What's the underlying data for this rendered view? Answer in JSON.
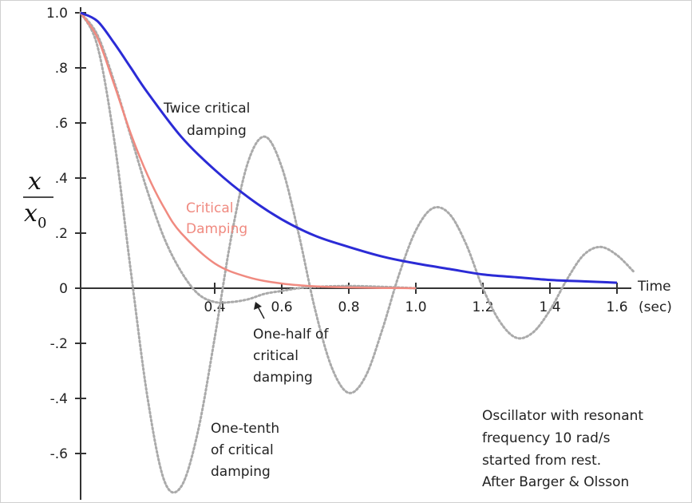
{
  "chart_data": {
    "type": "line",
    "title": "",
    "ylabel": {
      "numerator": "x",
      "denominator": "x",
      "subscript": "0"
    },
    "xlabel": {
      "line1": "Time",
      "line2": "(sec)"
    },
    "xlim": [
      0,
      1.6
    ],
    "ylim": [
      -0.7,
      1.0
    ],
    "x_ticks": [
      0.4,
      0.6,
      0.8,
      1.0,
      1.2,
      1.4,
      1.6
    ],
    "x_tick_labels": [
      "0.4",
      "0.6",
      "0.8",
      "1.0",
      "1.2",
      "1.4",
      "1.6"
    ],
    "y_ticks": [
      1.0,
      0.8,
      0.6,
      0.4,
      0.2,
      0,
      -0.2,
      -0.4,
      -0.6
    ],
    "y_tick_labels": [
      "1.0",
      ".8",
      ".6",
      ".4",
      ".2",
      "0",
      "-.2",
      "-.4",
      "-.6"
    ],
    "grid": false,
    "series": [
      {
        "name": "Twice critical damping",
        "color": "#2b2bd6",
        "style": "solid",
        "x": [
          0,
          0.05,
          0.1,
          0.15,
          0.2,
          0.3,
          0.4,
          0.5,
          0.6,
          0.7,
          0.8,
          0.9,
          1.0,
          1.1,
          1.2,
          1.3,
          1.4,
          1.5,
          1.6
        ],
        "y": [
          1.0,
          0.97,
          0.89,
          0.8,
          0.71,
          0.55,
          0.43,
          0.33,
          0.25,
          0.19,
          0.15,
          0.115,
          0.09,
          0.07,
          0.05,
          0.04,
          0.03,
          0.025,
          0.02
        ]
      },
      {
        "name": "Critical Damping",
        "color": "#f08a80",
        "style": "solid",
        "x": [
          0,
          0.05,
          0.1,
          0.15,
          0.2,
          0.25,
          0.3,
          0.4,
          0.5,
          0.6,
          0.7,
          0.8,
          0.9,
          1.0
        ],
        "y": [
          1.0,
          0.91,
          0.74,
          0.56,
          0.41,
          0.29,
          0.2,
          0.09,
          0.04,
          0.017,
          0.007,
          0.003,
          0.001,
          0.0
        ]
      },
      {
        "name": "One-half of critical damping",
        "color": "#aaaaaa",
        "style": "dotted",
        "x": [
          0,
          0.05,
          0.1,
          0.15,
          0.2,
          0.25,
          0.3,
          0.35,
          0.4,
          0.45,
          0.5,
          0.55,
          0.6,
          0.65,
          0.7,
          0.8,
          0.9,
          1.0
        ],
        "y": [
          1.0,
          0.92,
          0.75,
          0.55,
          0.35,
          0.18,
          0.06,
          -0.02,
          -0.05,
          -0.05,
          -0.04,
          -0.02,
          -0.01,
          0.0,
          0.005,
          0.008,
          0.005,
          0.0
        ]
      },
      {
        "name": "One-tenth of critical damping",
        "color": "#aaaaaa",
        "style": "dotted",
        "x": [
          0,
          0.05,
          0.1,
          0.15,
          0.2,
          0.25,
          0.3,
          0.35,
          0.4,
          0.45,
          0.5,
          0.55,
          0.6,
          0.65,
          0.7,
          0.75,
          0.8,
          0.85,
          0.9,
          0.95,
          1.0,
          1.05,
          1.1,
          1.15,
          1.2,
          1.25,
          1.3,
          1.35,
          1.4,
          1.45,
          1.5,
          1.55,
          1.6,
          1.65
        ],
        "y": [
          1.0,
          0.88,
          0.54,
          0.06,
          -0.4,
          -0.7,
          -0.72,
          -0.52,
          -0.18,
          0.19,
          0.46,
          0.55,
          0.44,
          0.2,
          -0.08,
          -0.29,
          -0.38,
          -0.32,
          -0.15,
          0.05,
          0.21,
          0.29,
          0.27,
          0.16,
          0.0,
          -0.12,
          -0.18,
          -0.16,
          -0.08,
          0.03,
          0.12,
          0.15,
          0.12,
          0.06
        ]
      }
    ],
    "annotations": {
      "twice": [
        "Twice critical",
        "damping"
      ],
      "critical": [
        "Critical",
        "Damping"
      ],
      "half": [
        "One-half of",
        "critical",
        "damping"
      ],
      "tenth": [
        "One-tenth",
        "of critical",
        "damping"
      ],
      "note": [
        "Oscillator with resonant",
        "frequency 10 rad/s",
        "started from rest.",
        "After Barger & Olsson"
      ]
    }
  }
}
